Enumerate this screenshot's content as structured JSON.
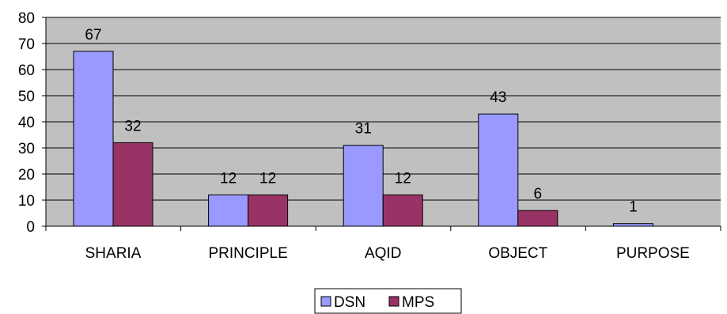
{
  "chart_data": {
    "type": "bar",
    "categories": [
      "SHARIA",
      "PRINCIPLE",
      "AQID",
      "OBJECT",
      "PURPOSE"
    ],
    "series": [
      {
        "name": "DSN",
        "values": [
          67,
          12,
          31,
          43,
          1
        ],
        "color": "#9999ff",
        "labels": [
          "67",
          "12",
          "31",
          "43",
          "1"
        ]
      },
      {
        "name": "MPS",
        "values": [
          32,
          12,
          12,
          6,
          0
        ],
        "color": "#993366",
        "labels": [
          "32",
          "12",
          "12",
          "6",
          ""
        ]
      }
    ],
    "ylim": [
      0,
      80
    ],
    "yticks": [
      0,
      10,
      20,
      30,
      40,
      50,
      60,
      70,
      80
    ],
    "plot_background": "#c0c0c0",
    "grid": true,
    "legend": "bottom-center",
    "title": "",
    "xlabel": "",
    "ylabel": ""
  }
}
